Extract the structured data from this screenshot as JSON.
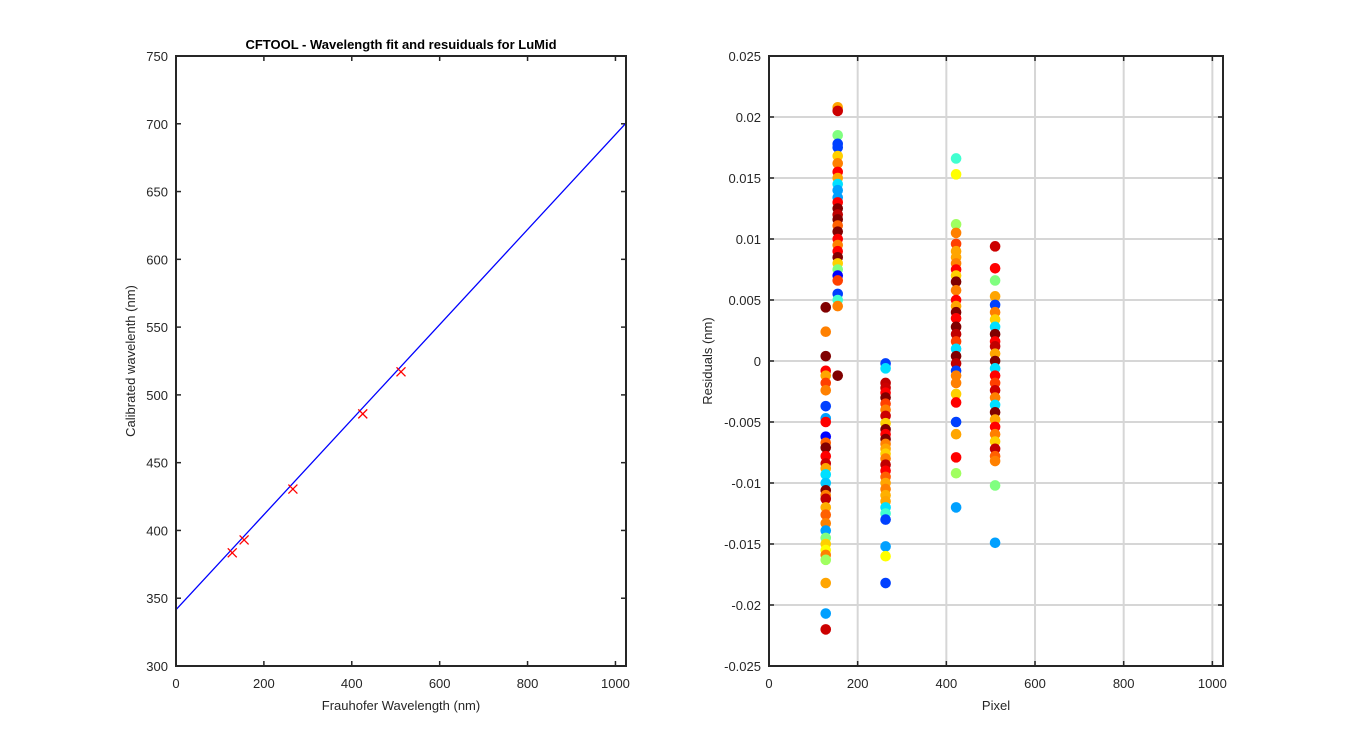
{
  "chart_data": [
    {
      "type": "line",
      "title": "CFTOOL - Wavelength fit and resuiduals for LuMid",
      "xlabel": "Frauhofer Wavelength (nm)",
      "ylabel": "Calibrated wavelenth (nm)",
      "xlim": [
        0,
        1024
      ],
      "ylim": [
        300,
        750
      ],
      "xticks": [
        "0",
        "200",
        "400",
        "600",
        "800",
        "1000"
      ],
      "yticks": [
        "300",
        "350",
        "400",
        "450",
        "500",
        "550",
        "600",
        "650",
        "700",
        "750"
      ],
      "grid": false,
      "series": [
        {
          "kind": "line",
          "color": "#0000ff",
          "x": [
            0,
            1024
          ],
          "y": [
            341.5,
            700.5
          ]
        },
        {
          "kind": "marker",
          "marker": "x",
          "color": "#ff0000",
          "x": [
            128,
            155,
            266,
            425,
            512
          ],
          "y": [
            383.5,
            393,
            430.5,
            486,
            517
          ]
        }
      ]
    },
    {
      "type": "scatter",
      "title": "",
      "xlabel": "Pixel",
      "ylabel": "Residuals  (nm)",
      "xlim": [
        0,
        1024
      ],
      "ylim": [
        -0.025,
        0.025
      ],
      "xticks": [
        "0",
        "200",
        "400",
        "600",
        "800",
        "1000"
      ],
      "yticks": [
        "-0.025",
        "-0.02",
        "-0.015",
        "-0.01",
        "-0.005",
        "0",
        "0.005",
        "0.01",
        "0.015",
        "0.02",
        "0.025"
      ],
      "grid": true,
      "groups": [
        {
          "x": 128,
          "y": [
            0.0044,
            0.0024,
            0.0004,
            -0.0008,
            -0.0012,
            -0.0018,
            -0.0024,
            -0.0037,
            -0.0047,
            -0.005,
            -0.0062,
            -0.0067,
            -0.0071,
            -0.0078,
            -0.0084,
            -0.0088,
            -0.0093,
            -0.01,
            -0.0106,
            -0.011,
            -0.0113,
            -0.012,
            -0.0126,
            -0.0133,
            -0.0139,
            -0.0145,
            -0.015,
            -0.0155,
            -0.0159,
            -0.0163,
            -0.0182,
            -0.0207,
            -0.022
          ],
          "colors": [
            "#800000",
            "#ff8000",
            "#800000",
            "#ff0000",
            "#ffa500",
            "#ff4000",
            "#ff8000",
            "#0040ff",
            "#00a0ff",
            "#ff0000",
            "#0000ff",
            "#ff6000",
            "#800000",
            "#ff0000",
            "#cc0000",
            "#ffa500",
            "#00e0ff",
            "#00c8ff",
            "#800000",
            "#ff8000",
            "#c00000",
            "#ffb000",
            "#ff6000",
            "#ff8000",
            "#00a0ff",
            "#80ff80",
            "#ffd000",
            "#ffff00",
            "#ff8000",
            "#a0ff60",
            "#ffa500",
            "#00a0ff",
            "#cc0000"
          ]
        },
        {
          "x": 155,
          "y": [
            0.0208,
            0.0205,
            0.0185,
            0.0178,
            0.0175,
            0.0168,
            0.0162,
            0.0155,
            0.015,
            0.0145,
            0.014,
            0.0134,
            0.013,
            0.0125,
            0.012,
            0.0116,
            0.0111,
            0.0106,
            0.01,
            0.0095,
            0.009,
            0.0085,
            0.008,
            0.0075,
            0.007,
            0.0066,
            0.0055,
            0.005,
            0.0045,
            -0.0012
          ],
          "colors": [
            "#ffa500",
            "#cc0000",
            "#80ff80",
            "#0040ff",
            "#0040ff",
            "#ffd000",
            "#ff8000",
            "#ff0000",
            "#ffa500",
            "#00e0ff",
            "#00a0ff",
            "#00a0ff",
            "#ff0000",
            "#800000",
            "#c00000",
            "#800000",
            "#ff6000",
            "#800000",
            "#ff0000",
            "#ff8000",
            "#ff0000",
            "#800000",
            "#ffd000",
            "#80ff80",
            "#0000ff",
            "#ff4000",
            "#0040ff",
            "#40ffd0",
            "#ff8000",
            "#800000"
          ]
        },
        {
          "x": 263,
          "y": [
            -0.0002,
            -0.0006,
            -0.0018,
            -0.0022,
            -0.0026,
            -0.003,
            -0.0035,
            -0.004,
            -0.0045,
            -0.0051,
            -0.0056,
            -0.006,
            -0.0064,
            -0.0068,
            -0.0072,
            -0.0076,
            -0.008,
            -0.0085,
            -0.009,
            -0.0095,
            -0.01,
            -0.0105,
            -0.011,
            -0.0115,
            -0.012,
            -0.0125,
            -0.013,
            -0.0152,
            -0.016,
            -0.0182
          ],
          "colors": [
            "#0040ff",
            "#00e0ff",
            "#c00000",
            "#cc0000",
            "#ff0000",
            "#800000",
            "#ff4000",
            "#ff8000",
            "#cc0000",
            "#ffd000",
            "#800000",
            "#ff0000",
            "#800000",
            "#ff8000",
            "#ffa500",
            "#ffd000",
            "#ff8000",
            "#c00000",
            "#ff0000",
            "#ff6000",
            "#ffa500",
            "#ff8000",
            "#ffb000",
            "#ffa500",
            "#00e0ff",
            "#40ffd0",
            "#0040ff",
            "#00a0ff",
            "#ffff00",
            "#0040ff"
          ]
        },
        {
          "x": 422,
          "y": [
            0.0166,
            0.0153,
            0.0112,
            0.0105,
            0.0096,
            0.009,
            0.0085,
            0.008,
            0.0075,
            0.007,
            0.0065,
            0.0058,
            0.005,
            0.0045,
            0.004,
            0.0035,
            0.0028,
            0.0022,
            0.0016,
            0.001,
            0.0004,
            -0.0002,
            -0.0008,
            -0.0012,
            -0.0018,
            -0.0027,
            -0.0034,
            -0.005,
            -0.006,
            -0.0079,
            -0.0092,
            -0.012
          ],
          "colors": [
            "#40ffd0",
            "#ffff00",
            "#a0ff60",
            "#ff8000",
            "#ff4000",
            "#ffa500",
            "#ffa500",
            "#ff8000",
            "#ff0000",
            "#ffd000",
            "#800000",
            "#ff8000",
            "#ff0000",
            "#ffa500",
            "#800000",
            "#ff0000",
            "#800000",
            "#c00000",
            "#ff4000",
            "#00e0ff",
            "#800000",
            "#c00000",
            "#0040ff",
            "#ff8000",
            "#ff8000",
            "#ffd000",
            "#ff0000",
            "#0040ff",
            "#ffa500",
            "#ff0000",
            "#a0ff60",
            "#00a0ff"
          ]
        },
        {
          "x": 510,
          "y": [
            0.0094,
            0.0076,
            0.0066,
            0.0053,
            0.0046,
            0.004,
            0.0034,
            0.0028,
            0.0022,
            0.0016,
            0.0012,
            0.0006,
            0.0,
            -0.0006,
            -0.0012,
            -0.0018,
            -0.0024,
            -0.003,
            -0.0036,
            -0.0042,
            -0.0048,
            -0.0054,
            -0.006,
            -0.0066,
            -0.0072,
            -0.0078,
            -0.0082,
            -0.0102,
            -0.0149
          ],
          "colors": [
            "#cc0000",
            "#ff0000",
            "#80ff80",
            "#ffa500",
            "#0040ff",
            "#ff8000",
            "#ffd000",
            "#00e0ff",
            "#800000",
            "#ff0000",
            "#c00000",
            "#ffa500",
            "#800000",
            "#00e0ff",
            "#ff0000",
            "#ff4000",
            "#cc0000",
            "#ff8000",
            "#00e0ff",
            "#800000",
            "#ffa500",
            "#ff0000",
            "#ff8000",
            "#ffd000",
            "#c00000",
            "#ff6000",
            "#ff8000",
            "#80ff80",
            "#00a0ff"
          ]
        }
      ]
    }
  ]
}
